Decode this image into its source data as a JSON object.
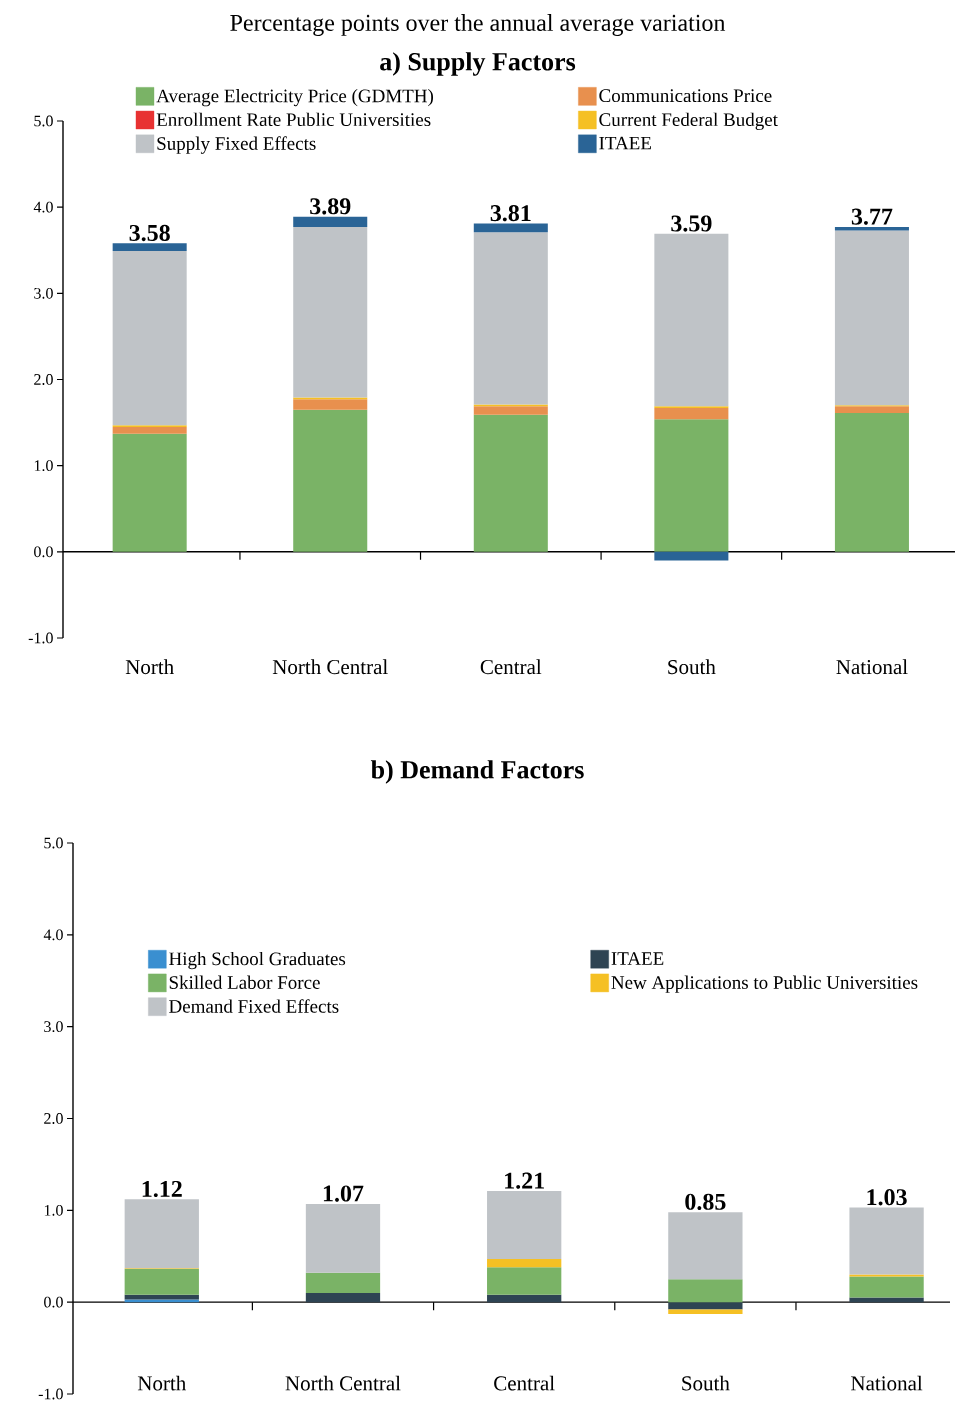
{
  "chart_data": [
    {
      "type": "bar",
      "title": "Percentage points over the annual average variation",
      "subtitle": "a) Supply Factors",
      "stacked": true,
      "categories": [
        "North",
        "North Central",
        "Central",
        "South",
        "National"
      ],
      "series": [
        {
          "name": "Average Electricity Price (GDMTH)",
          "color": "#7ab366",
          "values": [
            1.37,
            1.65,
            1.59,
            1.54,
            1.61
          ]
        },
        {
          "name": "Communications Price",
          "color": "#e8904e",
          "values": [
            0.08,
            0.12,
            0.1,
            0.13,
            0.08
          ]
        },
        {
          "name": "Enrollment Rate Public Universities",
          "color": "#e83232",
          "values": [
            0,
            0,
            0,
            0,
            0
          ]
        },
        {
          "name": "Current Federal Budget",
          "color": "#f5c024",
          "values": [
            0.02,
            0.02,
            0.02,
            0.02,
            0.01
          ]
        },
        {
          "name": "Supply Fixed Effects",
          "color": "#bfc3c7",
          "values": [
            2.02,
            1.98,
            2.0,
            2.0,
            2.03
          ]
        },
        {
          "name": "ITAEE",
          "color": "#2a6496",
          "values": [
            0.09,
            0.12,
            0.1,
            -0.1,
            0.04
          ]
        }
      ],
      "totals": [
        "3.58",
        "3.89",
        "3.81",
        "3.59",
        "3.77"
      ],
      "ylim": [
        -1,
        5
      ],
      "yticks": [
        {
          "value": -1,
          "label": "-1.0"
        },
        {
          "value": 0,
          "label": "0.0"
        },
        {
          "value": 1,
          "label": "1.0"
        },
        {
          "value": 2,
          "label": "2.0"
        },
        {
          "value": 3,
          "label": "3.0"
        },
        {
          "value": 4,
          "label": "4.0"
        },
        {
          "value": 5,
          "label": "5.0"
        }
      ],
      "legend": "top"
    },
    {
      "type": "bar",
      "title": "b) Demand Factors",
      "stacked": true,
      "categories": [
        "North",
        "North Central",
        "Central",
        "South",
        "National"
      ],
      "series": [
        {
          "name": "High School Graduates",
          "color": "#3a8fd0",
          "values": [
            0.03,
            0,
            0,
            0,
            0
          ]
        },
        {
          "name": "ITAEE",
          "color": "#2e4453",
          "values": [
            0.05,
            0.1,
            0.08,
            -0.08,
            0.05
          ]
        },
        {
          "name": "Skilled Labor Force",
          "color": "#7ab366",
          "values": [
            0.28,
            0.22,
            0.3,
            0.25,
            0.23
          ]
        },
        {
          "name": "New Applications to Public Universities",
          "color": "#f5c024",
          "values": [
            0.01,
            0,
            0.09,
            -0.05,
            0.02
          ]
        },
        {
          "name": "Demand Fixed Effects",
          "color": "#bfc3c7",
          "values": [
            0.75,
            0.75,
            0.74,
            0.73,
            0.73
          ]
        }
      ],
      "totals": [
        "1.12",
        "1.07",
        "1.21",
        "0.85",
        "1.03"
      ],
      "ylim": [
        -1,
        5
      ],
      "yticks": [
        {
          "value": -1,
          "label": "-1.0"
        },
        {
          "value": 0,
          "label": "0.0"
        },
        {
          "value": 1,
          "label": "1.0"
        },
        {
          "value": 2,
          "label": "2.0"
        },
        {
          "value": 3,
          "label": "3.0"
        },
        {
          "value": 4,
          "label": "4.0"
        },
        {
          "value": 5,
          "label": "5.0"
        }
      ],
      "legend": "top left"
    }
  ]
}
